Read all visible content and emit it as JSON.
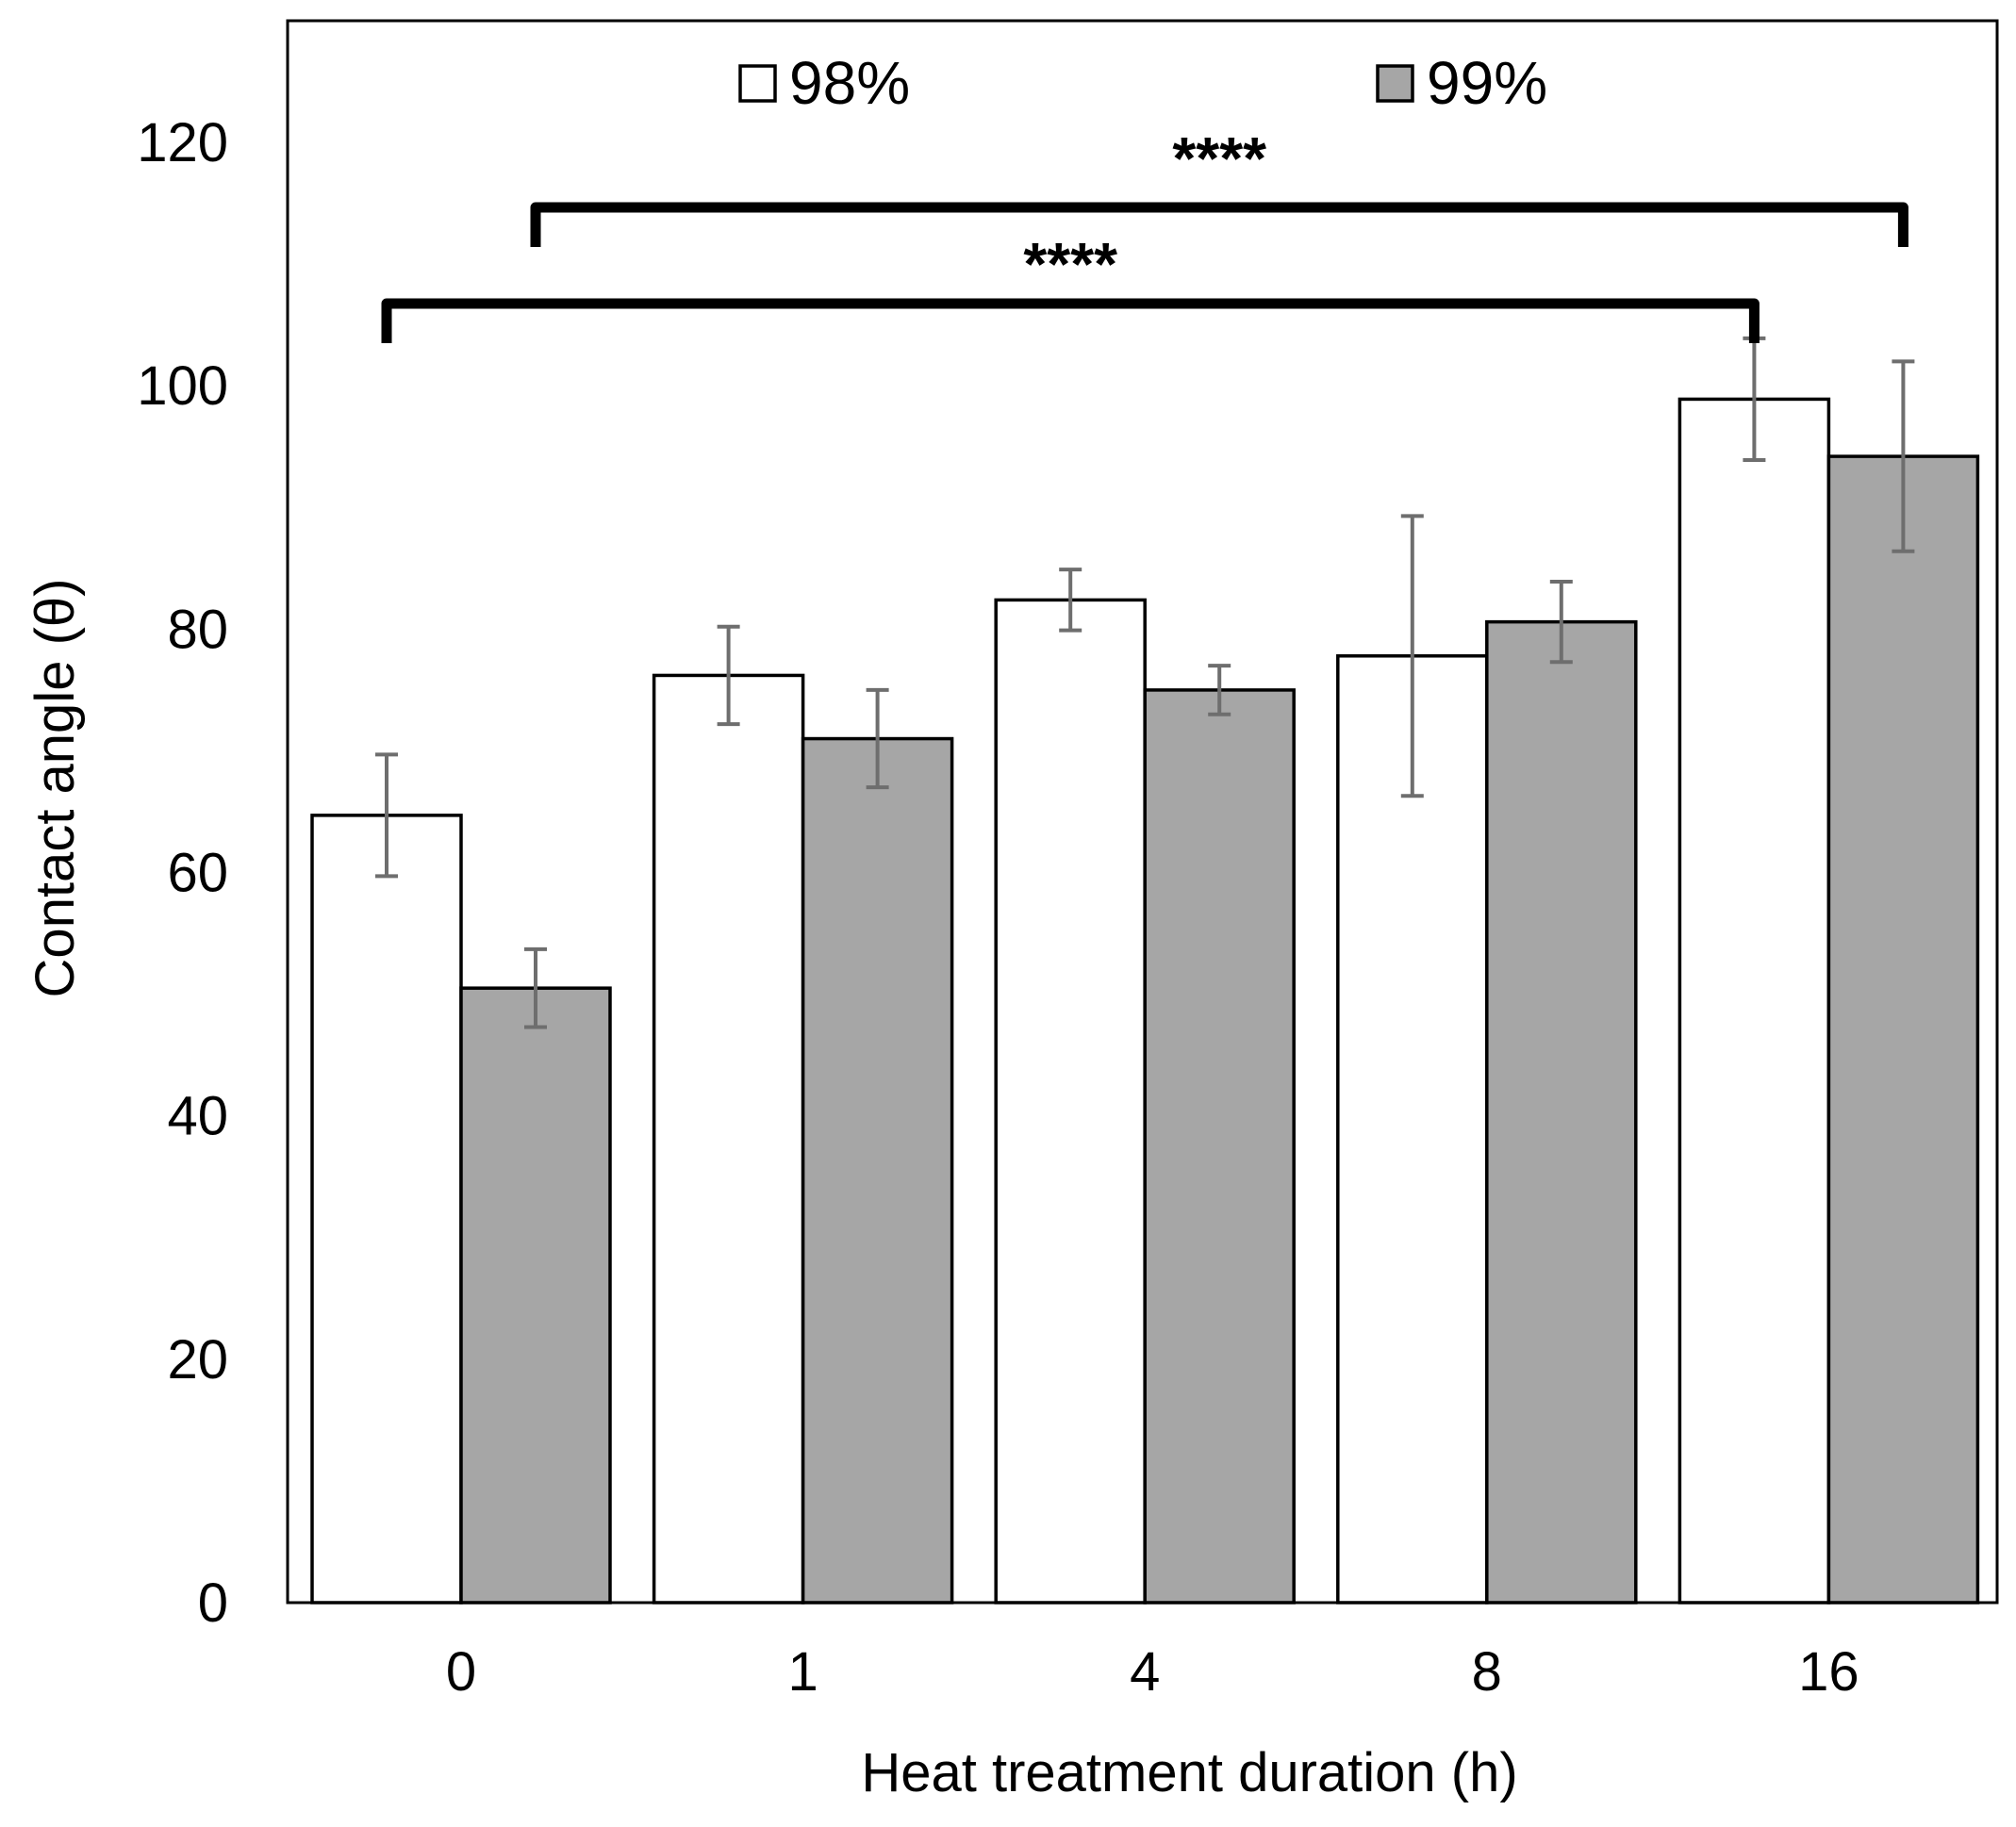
{
  "chart_data": {
    "type": "bar",
    "title": "",
    "xlabel": "Heat treatment duration (h)",
    "ylabel": "Contact angle (θ)",
    "ylim": [
      0,
      130
    ],
    "yticks": [
      "0",
      "20",
      "40",
      "60",
      "80",
      "100",
      "120"
    ],
    "categories": [
      "0",
      "1",
      "4",
      "8",
      "16"
    ],
    "series": [
      {
        "name": "98%",
        "color": "#ffffff",
        "values": [
          64.7,
          76.2,
          82.4,
          77.8,
          98.9
        ],
        "errors": [
          5.0,
          4.0,
          2.5,
          11.5,
          5.0
        ]
      },
      {
        "name": "99%",
        "color": "#a6a6a6",
        "values": [
          50.5,
          71.0,
          75.0,
          80.6,
          94.2
        ],
        "errors": [
          3.2,
          4.0,
          2.0,
          3.3,
          7.8
        ]
      }
    ],
    "legend": "top",
    "grid": false,
    "annotations": [
      {
        "text": "****",
        "from_category": 0,
        "from_series": 0,
        "to_category": 4,
        "to_series": 0
      },
      {
        "text": "****",
        "from_category": 0,
        "from_series": 1,
        "to_category": 4,
        "to_series": 1
      }
    ]
  }
}
